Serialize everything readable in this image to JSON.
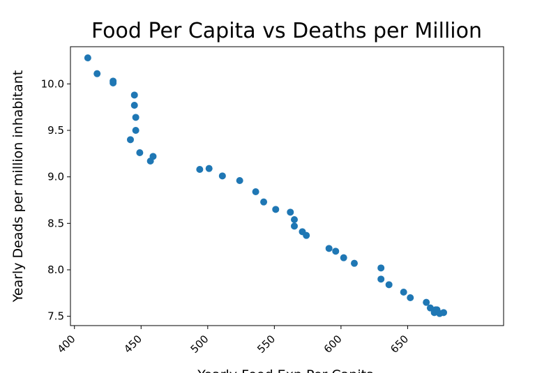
{
  "chart_data": {
    "type": "scatter",
    "title": "Food Per Capita vs Deaths per Million",
    "xlabel": "Yearly Food Exp Per Capita",
    "ylabel": "Yearly Deads per million inhabitant",
    "xlim": [
      397,
      722
    ],
    "ylim": [
      7.4,
      10.4
    ],
    "xticks": [
      400,
      450,
      500,
      550,
      600,
      650
    ],
    "xtick_labels": [
      "400",
      "450",
      "500",
      "550",
      "600",
      "650"
    ],
    "yticks": [
      7.5,
      8.0,
      8.5,
      9.0,
      9.5,
      10.0
    ],
    "ytick_labels": [
      "7.5",
      "8.0",
      "8.5",
      "9.0",
      "9.5",
      "10.0"
    ],
    "grid": false,
    "legend": "none",
    "marker_color": "#1f77b4",
    "series": [
      {
        "x": [
          410,
          417,
          429,
          429,
          445,
          445,
          446,
          446,
          442,
          449,
          457,
          459,
          494,
          501,
          511,
          524,
          536,
          542,
          551,
          562,
          565,
          565,
          571,
          574,
          591,
          596,
          602,
          610,
          630,
          630,
          636,
          647,
          652,
          664,
          667,
          670,
          671,
          672,
          674,
          677
        ],
        "y": [
          10.28,
          10.11,
          10.03,
          10.01,
          9.88,
          9.77,
          9.64,
          9.5,
          9.4,
          9.26,
          9.17,
          9.22,
          9.08,
          9.09,
          9.01,
          8.96,
          8.84,
          8.73,
          8.65,
          8.62,
          8.54,
          8.47,
          8.41,
          8.37,
          8.23,
          8.2,
          8.13,
          8.07,
          8.02,
          7.9,
          7.84,
          7.76,
          7.7,
          7.65,
          7.59,
          7.54,
          7.57,
          7.57,
          7.53,
          7.54
        ]
      }
    ]
  }
}
